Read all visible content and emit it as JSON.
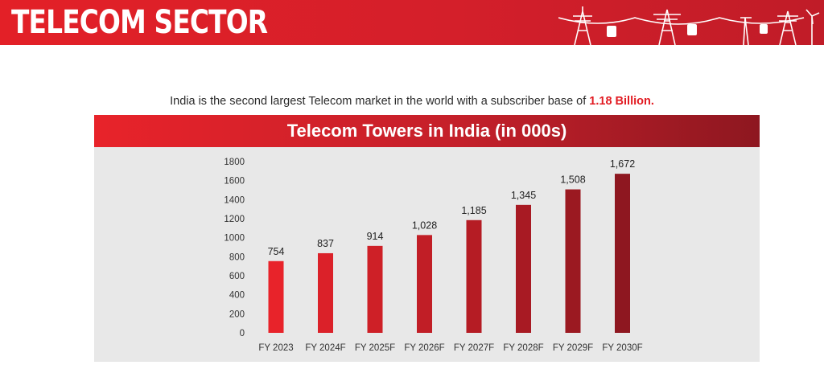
{
  "header": {
    "title": "TELECOM SECTOR"
  },
  "subtitle": {
    "text": "India is the second largest Telecom market in the world with a subscriber base of ",
    "highlight": "1.18 Billion."
  },
  "chart_data": {
    "type": "bar",
    "title": "Telecom Towers in India (in 000s)",
    "categories": [
      "FY 2023",
      "FY 2024F",
      "FY 2025F",
      "FY 2026F",
      "FY 2027F",
      "FY 2028F",
      "FY 2029F",
      "FY 2030F"
    ],
    "values": [
      754,
      837,
      914,
      1028,
      1185,
      1345,
      1508,
      1672
    ],
    "data_labels": [
      "754",
      "837",
      "914",
      "1,028",
      "1,185",
      "1,345",
      "1,508",
      "1,672"
    ],
    "ylim": [
      0,
      1800
    ],
    "yticks": [
      0,
      200,
      400,
      600,
      800,
      1000,
      1200,
      1400,
      1600,
      1800
    ],
    "xlabel": "",
    "ylabel": "",
    "grid": false,
    "bar_color_start": "#e8232a",
    "bar_color_end": "#8e1720"
  },
  "colors": {
    "brand_red": "#e21b22",
    "panel_bg": "#e8e8e8"
  }
}
